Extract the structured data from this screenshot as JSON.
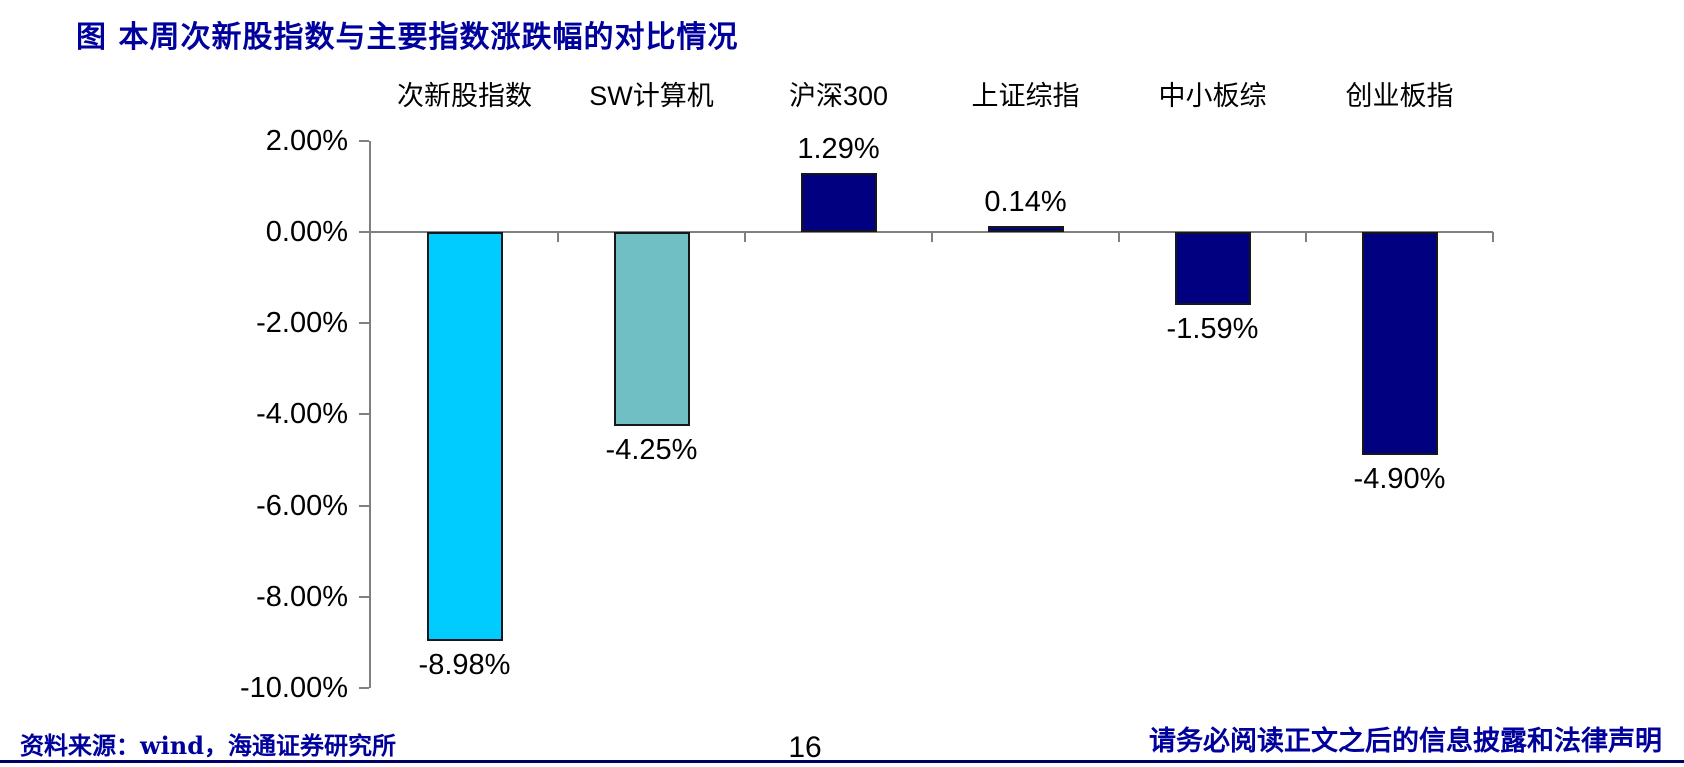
{
  "page": {
    "title": "图 本周次新股指数与主要指数涨跌幅的对比情况",
    "footer": {
      "source": "资料来源：wind，海通证券研究所",
      "page_number": "16",
      "disclaimer": "请务必阅读正文之后的信息披露和法律声明"
    },
    "colors": {
      "title_text": "#00009C",
      "footer_text": "#00009C",
      "bottom_rule": "#000066",
      "axis": "#808080",
      "bar_cyan": "#00CCFF",
      "bar_teal": "#6FBFC4",
      "bar_navy": "#000080"
    }
  },
  "chart_data": {
    "type": "bar",
    "title": "图 本周次新股指数与主要指数涨跌幅的对比情况",
    "categories": [
      "次新股指数",
      "SW计算机",
      "沪深300",
      "上证综指",
      "中小板综",
      "创业板指"
    ],
    "values": [
      -8.98,
      -4.25,
      1.29,
      0.14,
      -1.59,
      -4.9
    ],
    "labels": [
      "-8.98%",
      "-4.25%",
      "1.29%",
      "0.14%",
      "-1.59%",
      "-4.90%"
    ],
    "bar_colors": [
      "#00CCFF",
      "#6FBFC4",
      "#000080",
      "#000080",
      "#000080",
      "#000080"
    ],
    "yticks": [
      2,
      0,
      -2,
      -4,
      -6,
      -8,
      -10
    ],
    "ytick_labels": [
      "2.00%",
      "0.00%",
      "-2.00%",
      "-4.00%",
      "-6.00%",
      "-8.00%",
      "-10.00%"
    ],
    "ylim": [
      -10,
      2
    ],
    "xlabel": "",
    "ylabel": "",
    "grid": false,
    "legend": false,
    "category_labels_position": "top",
    "unit": "percent"
  }
}
